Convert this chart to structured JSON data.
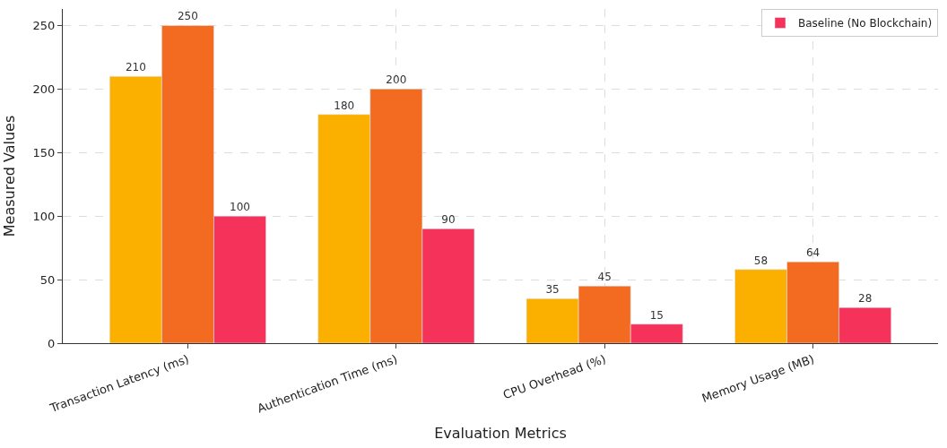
{
  "chart_data": {
    "type": "bar",
    "xlabel": "Evaluation Metrics",
    "ylabel": "Measured Values",
    "categories": [
      "Transaction Latency (ms)",
      "Authentication Time (ms)",
      "CPU Overhead (%)",
      "Memory Usage (MB)"
    ],
    "series": [
      {
        "color": "#fbb000",
        "values": [
          210,
          180,
          35,
          58
        ]
      },
      {
        "color": "#f26b21",
        "values": [
          250,
          200,
          45,
          64
        ]
      },
      {
        "name": "Baseline (No Blockchain)",
        "color": "#f5325a",
        "values": [
          100,
          90,
          15,
          28
        ]
      }
    ],
    "ylim": [
      0,
      263
    ],
    "yticks": [
      0,
      50,
      100,
      150,
      200,
      250
    ],
    "grid": true,
    "legend": "top right",
    "data_labels": true
  }
}
